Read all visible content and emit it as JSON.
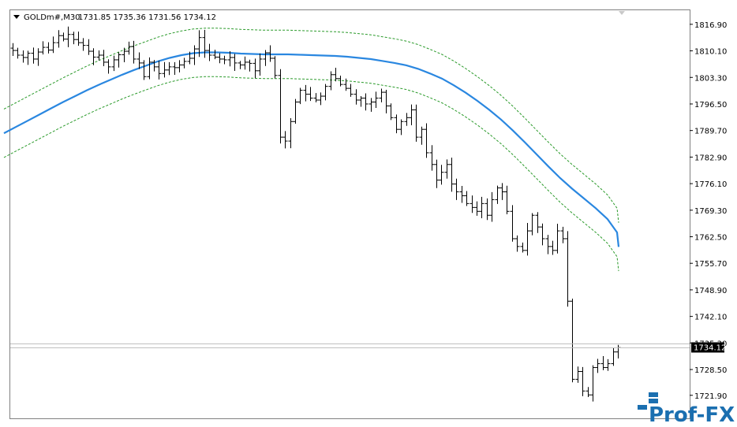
{
  "header": {
    "symbol": "GOLDm#,M30",
    "ohlc": "1731.85 1735.36 1731.56 1734.12"
  },
  "price_tag": "1734.12",
  "logo": {
    "text": "Prof-FX"
  },
  "colors": {
    "bars": "#000000",
    "ma": "#2a87e0",
    "envelope": "#2a9a2a",
    "price_line": "#c0c0c0",
    "price_tag_bg": "#000000",
    "price_tag_fg": "#ffffff",
    "logo": "#1b6fb0"
  },
  "chart_data": {
    "type": "ohlc",
    "ylim": [
      1716.0,
      1820.5
    ],
    "y_ticks": [
      "1816.90",
      "1810.10",
      "1803.30",
      "1796.50",
      "1789.70",
      "1782.90",
      "1776.10",
      "1769.30",
      "1762.50",
      "1755.70",
      "1748.90",
      "1742.10",
      "1735.30",
      "1728.50",
      "1721.90"
    ],
    "current_price": 1734.12,
    "bars_close": [
      1810.2,
      1809.0,
      1808.4,
      1809.5,
      1808.0,
      1809.8,
      1811.0,
      1810.3,
      1812.2,
      1814.0,
      1813.1,
      1814.3,
      1813.0,
      1812.2,
      1811.5,
      1810.0,
      1808.5,
      1809.0,
      1807.2,
      1806.0,
      1807.8,
      1809.1,
      1810.0,
      1811.2,
      1808.0,
      1807.0,
      1803.5,
      1807.2,
      1806.0,
      1804.3,
      1805.2,
      1806.0,
      1805.8,
      1806.5,
      1807.4,
      1808.2,
      1810.6,
      1813.5,
      1810.2,
      1809.0,
      1808.5,
      1808.0,
      1807.8,
      1808.4,
      1807.0,
      1806.5,
      1807.2,
      1806.9,
      1805.0,
      1808.0,
      1809.6,
      1808.2,
      1803.8,
      1788.0,
      1787.0,
      1792.0,
      1797.0,
      1800.0,
      1799.0,
      1798.0,
      1797.5,
      1798.5,
      1801.0,
      1804.0,
      1803.0,
      1801.5,
      1800.5,
      1799.0,
      1797.5,
      1798.0,
      1796.5,
      1797.0,
      1798.0,
      1799.5,
      1796.0,
      1793.0,
      1790.0,
      1792.0,
      1793.0,
      1795.0,
      1788.0,
      1790.0,
      1784.0,
      1781.0,
      1777.0,
      1779.0,
      1781.0,
      1776.0,
      1774.0,
      1773.0,
      1771.0,
      1770.0,
      1769.0,
      1771.0,
      1768.0,
      1772.0,
      1775.0,
      1774.0,
      1769.0,
      1762.0,
      1760.0,
      1759.0,
      1764.0,
      1768.0,
      1765.0,
      1762.0,
      1760.0,
      1759.0,
      1764.0,
      1762.0,
      1746.0,
      1726.0,
      1728.0,
      1723.0,
      1722.0,
      1729.0,
      1730.0,
      1729.0,
      1730.0,
      1733.0,
      1734.12
    ],
    "ma": [
      1789.0,
      1790.6,
      1792.2,
      1793.8,
      1795.4,
      1797.0,
      1798.5,
      1800.0,
      1801.4,
      1802.7,
      1804.0,
      1805.2,
      1806.3,
      1807.4,
      1808.3,
      1809.0,
      1809.5,
      1809.7,
      1809.7,
      1809.6,
      1809.4,
      1809.3,
      1809.2,
      1809.2,
      1809.2,
      1809.1,
      1809.0,
      1808.9,
      1808.8,
      1808.6,
      1808.3,
      1808.0,
      1807.5,
      1807.0,
      1806.4,
      1805.5,
      1804.3,
      1803.0,
      1801.3,
      1799.4,
      1797.3,
      1795.0,
      1792.5,
      1789.7,
      1786.7,
      1783.6,
      1780.5,
      1777.5,
      1774.8,
      1772.3,
      1769.8,
      1767.0,
      1763.6,
      1759.9
    ],
    "ma_x": [
      5,
      20,
      35,
      50,
      65,
      80,
      95,
      110,
      125,
      140,
      155,
      170,
      185,
      200,
      215,
      230,
      245,
      260,
      275,
      290,
      305,
      320,
      335,
      350,
      365,
      380,
      395,
      410,
      425,
      440,
      455,
      470,
      485,
      500,
      515,
      530,
      545,
      560,
      575,
      590,
      605,
      620,
      635,
      650,
      665,
      680,
      695,
      710,
      725,
      740,
      755,
      770,
      782,
      784
    ]
  }
}
